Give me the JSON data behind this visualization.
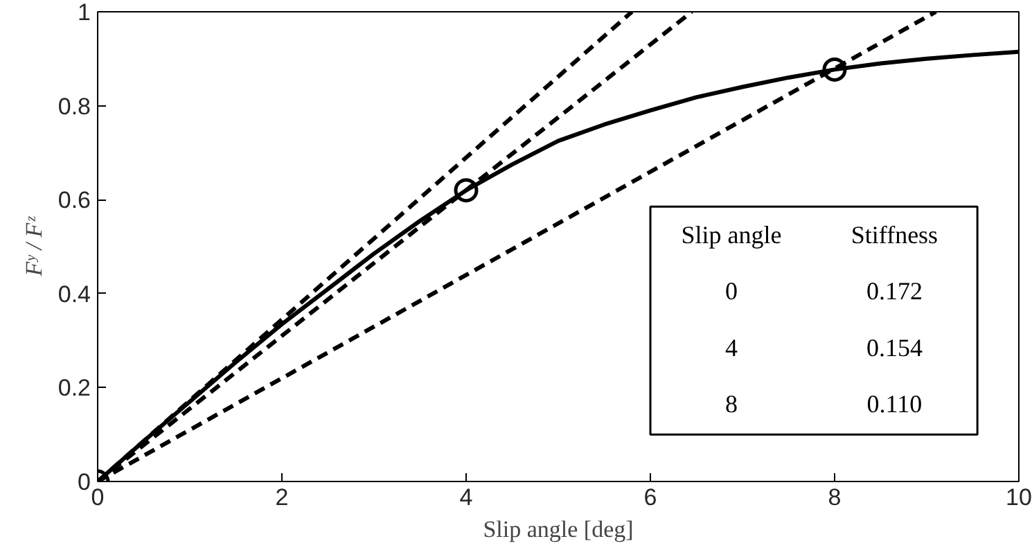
{
  "chart_data": {
    "type": "line",
    "xlabel": "Slip angle [deg]",
    "ylabel": "Fʸ / Fᶻ",
    "xlim": [
      0,
      10
    ],
    "ylim": [
      0,
      1
    ],
    "xticks": [
      0,
      2,
      4,
      6,
      8,
      10
    ],
    "yticks": [
      0,
      0.2,
      0.4,
      0.6,
      0.8,
      1
    ],
    "grid": false,
    "series": [
      {
        "color": "#000000",
        "line_style": "solid",
        "x": [
          0,
          0.5,
          1,
          1.5,
          2,
          2.5,
          3,
          3.5,
          4,
          4.5,
          5,
          5.5,
          6,
          6.5,
          7,
          7.5,
          8,
          8.5,
          9,
          9.5,
          10
        ],
        "values": [
          0,
          0.086,
          0.17,
          0.254,
          0.335,
          0.41,
          0.485,
          0.555,
          0.62,
          0.675,
          0.725,
          0.76,
          0.79,
          0.818,
          0.84,
          0.86,
          0.877,
          0.89,
          0.9,
          0.908,
          0.915
        ]
      },
      {
        "color": "#000000",
        "line_style": "dashed",
        "x": [
          0,
          5.8
        ],
        "values": [
          0,
          1
        ]
      },
      {
        "color": "#000000",
        "line_style": "dashed",
        "x": [
          0,
          6.45
        ],
        "values": [
          0,
          1
        ]
      },
      {
        "color": "#000000",
        "line_style": "dashed",
        "x": [
          0,
          9.1
        ],
        "values": [
          0,
          1
        ]
      },
      {
        "type": "scatter",
        "color": "#000000",
        "marker": "circle",
        "x": [
          0,
          4,
          8
        ],
        "values": [
          0,
          0.62,
          0.877
        ]
      }
    ],
    "annotations": [
      "Slip angle",
      "Stiffness",
      "0",
      "0.172",
      "4",
      "0.154",
      "8",
      "0.110"
    ]
  }
}
